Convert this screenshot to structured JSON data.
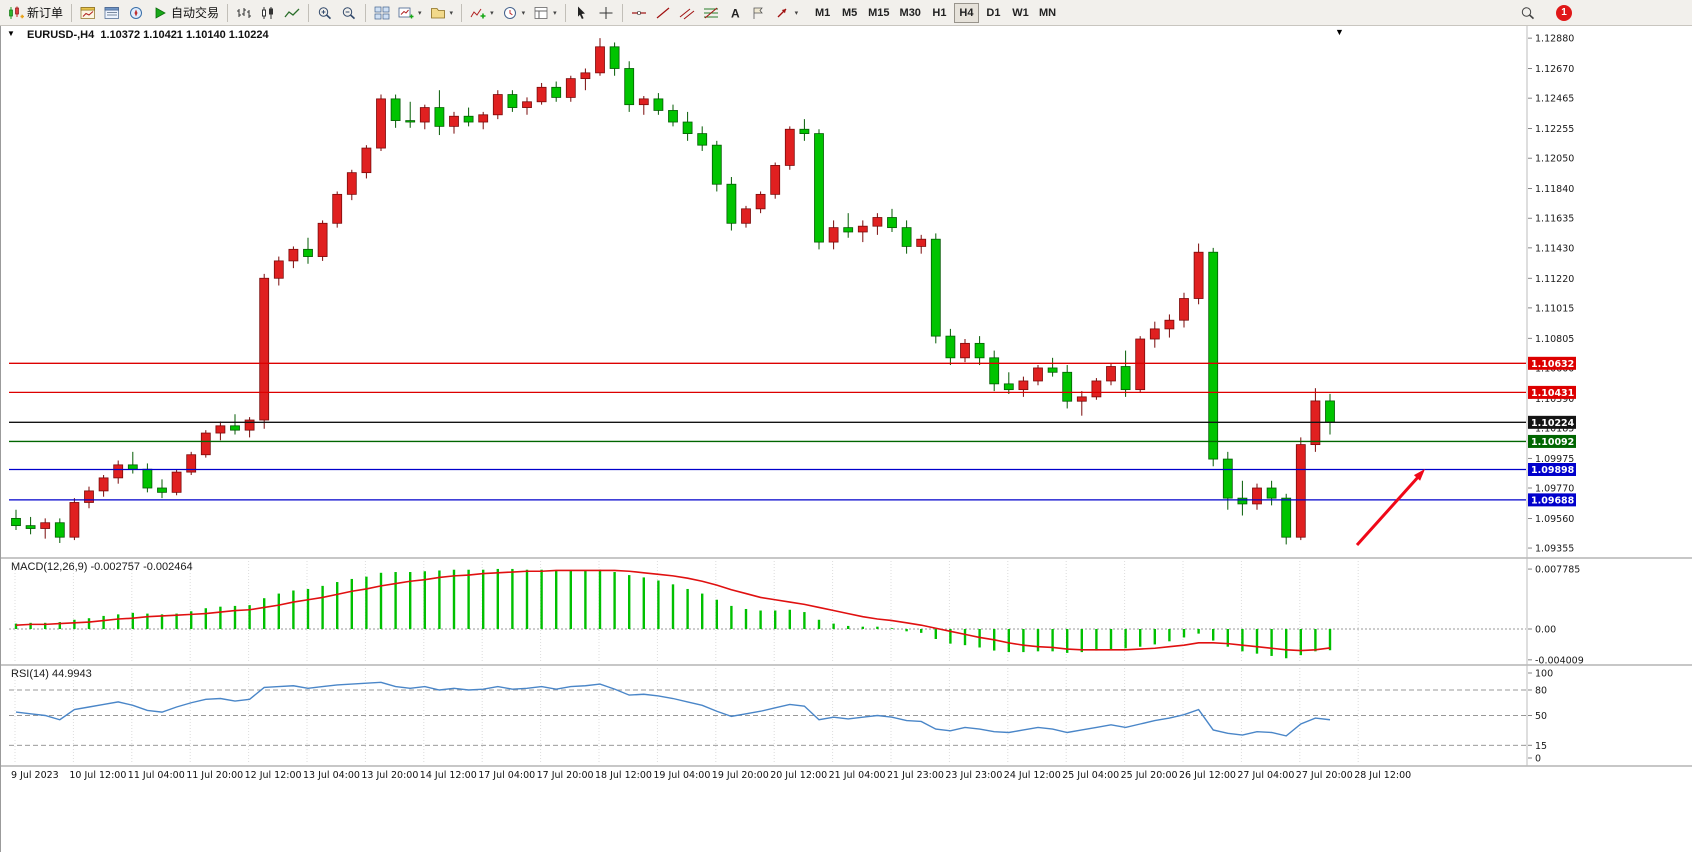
{
  "toolbar": {
    "new_order_label": "新订单",
    "autotrading_label": "自动交易",
    "text_tool_glyph": "A",
    "timeframes": [
      "M1",
      "M5",
      "M15",
      "M30",
      "H1",
      "H4",
      "D1",
      "W1",
      "MN"
    ],
    "active_timeframe": "H4",
    "notification_count": "1",
    "buttons": [
      "new-order",
      "market-watch",
      "data-window",
      "navigator",
      "autotrading",
      "bar-chart-type",
      "candlestick-type",
      "line-chart-type",
      "zoom-in",
      "zoom-out",
      "tile-windows",
      "new-chart",
      "profiles",
      "indicators",
      "periods",
      "templates",
      "cursor",
      "crosshair",
      "horizontal-line",
      "trendline",
      "equidistant-channel",
      "fibonacci",
      "text",
      "text-label",
      "arrows",
      "search",
      "notifications"
    ]
  },
  "chart": {
    "title_text": "EURUSD-,H4  1.10372 1.10421 1.10140 1.10224",
    "macd_text": "MACD(12,26,9) -0.002757 -0.002464",
    "rsi_text": "RSI(14) 44.9943"
  },
  "chart_data": [
    {
      "type": "candlestick",
      "symbol": "EURUSD-",
      "period": "H4",
      "ohlc_current": {
        "open": 1.10372,
        "high": 1.10421,
        "low": 1.1014,
        "close": 1.10224
      },
      "colors": {
        "bull": "#e02020",
        "bear": "#00c400"
      },
      "ylim": [
        1.09355,
        1.1288
      ],
      "y_ticks": [
        "1.12880",
        "1.12670",
        "1.12465",
        "1.12255",
        "1.12050",
        "1.11840",
        "1.11635",
        "1.11430",
        "1.11220",
        "1.11015",
        "1.10805",
        "1.10600",
        "1.10390",
        "1.10185",
        "1.09975",
        "1.09770",
        "1.09560",
        "1.09355"
      ],
      "x_labels": [
        "9 Jul 2023",
        "10 Jul 12:00",
        "11 Jul 04:00",
        "11 Jul 20:00",
        "12 Jul 12:00",
        "13 Jul 04:00",
        "13 Jul 20:00",
        "14 Jul 12:00",
        "17 Jul 04:00",
        "17 Jul 20:00",
        "18 Jul 12:00",
        "19 Jul 04:00",
        "19 Jul 20:00",
        "20 Jul 12:00",
        "21 Jul 04:00",
        "21 Jul 23:00",
        "23 Jul 23:00",
        "24 Jul 12:00",
        "25 Jul 04:00",
        "25 Jul 20:00",
        "26 Jul 12:00",
        "27 Jul 04:00",
        "27 Jul 20:00",
        "28 Jul 12:00"
      ],
      "hlines": [
        {
          "price": 1.10632,
          "label": "1.10632",
          "color": "#dd0000"
        },
        {
          "price": 1.10431,
          "label": "1.10431",
          "color": "#dd0000"
        },
        {
          "price": 1.10224,
          "label": "1.10224",
          "color": "#141414"
        },
        {
          "price": 1.10092,
          "label": "1.10092",
          "color": "#006600"
        },
        {
          "price": 1.09898,
          "label": "1.09898",
          "color": "#0000cc"
        },
        {
          "price": 1.09688,
          "label": "1.09688",
          "color": "#0000cc"
        }
      ],
      "arrow_annotation": {
        "shape": "arrow",
        "color": "#f00818",
        "direction": "up-right"
      },
      "candles": [
        [
          1.0956,
          1.0962,
          1.0948,
          1.0951
        ],
        [
          1.0951,
          1.0957,
          1.0945,
          1.0949
        ],
        [
          1.0949,
          1.0956,
          1.0942,
          1.0953
        ],
        [
          1.0953,
          1.0956,
          1.0939,
          1.0943
        ],
        [
          1.0943,
          1.097,
          1.0941,
          1.0967
        ],
        [
          1.0967,
          1.0978,
          1.0963,
          1.0975
        ],
        [
          1.0975,
          1.0986,
          1.0971,
          1.0984
        ],
        [
          1.0984,
          1.0996,
          1.098,
          1.0993
        ],
        [
          1.0993,
          1.1002,
          1.0987,
          1.099
        ],
        [
          1.099,
          1.0994,
          1.0974,
          1.0977
        ],
        [
          1.0977,
          1.0983,
          1.097,
          1.0974
        ],
        [
          1.0974,
          1.099,
          1.0972,
          1.0988
        ],
        [
          1.0988,
          1.1002,
          1.0986,
          1.1
        ],
        [
          1.1,
          1.1017,
          1.0998,
          1.1015
        ],
        [
          1.1015,
          1.1023,
          1.101,
          1.102
        ],
        [
          1.102,
          1.1028,
          1.1014,
          1.1017
        ],
        [
          1.1017,
          1.1026,
          1.1012,
          1.1024
        ],
        [
          1.1024,
          1.1125,
          1.1018,
          1.1122
        ],
        [
          1.1122,
          1.1137,
          1.1117,
          1.1134
        ],
        [
          1.1134,
          1.1144,
          1.1129,
          1.1142
        ],
        [
          1.1142,
          1.115,
          1.1132,
          1.1137
        ],
        [
          1.1137,
          1.1162,
          1.1134,
          1.116
        ],
        [
          1.116,
          1.1182,
          1.1157,
          1.118
        ],
        [
          1.118,
          1.1197,
          1.1176,
          1.1195
        ],
        [
          1.1195,
          1.1214,
          1.1191,
          1.1212
        ],
        [
          1.1212,
          1.1249,
          1.121,
          1.1246
        ],
        [
          1.1246,
          1.1249,
          1.1226,
          1.1231
        ],
        [
          1.1231,
          1.1244,
          1.1226,
          1.123
        ],
        [
          1.123,
          1.1242,
          1.1225,
          1.124
        ],
        [
          1.124,
          1.1252,
          1.1221,
          1.1227
        ],
        [
          1.1227,
          1.1237,
          1.1222,
          1.1234
        ],
        [
          1.1234,
          1.124,
          1.1227,
          1.123
        ],
        [
          1.123,
          1.1237,
          1.1225,
          1.1235
        ],
        [
          1.1235,
          1.1252,
          1.1232,
          1.1249
        ],
        [
          1.1249,
          1.1252,
          1.1237,
          1.124
        ],
        [
          1.124,
          1.1247,
          1.1235,
          1.1244
        ],
        [
          1.1244,
          1.1257,
          1.1242,
          1.1254
        ],
        [
          1.1254,
          1.1258,
          1.1244,
          1.1247
        ],
        [
          1.1247,
          1.1262,
          1.1244,
          1.126
        ],
        [
          1.126,
          1.1267,
          1.1252,
          1.1264
        ],
        [
          1.1264,
          1.1288,
          1.1262,
          1.1282
        ],
        [
          1.1282,
          1.1285,
          1.1262,
          1.1267
        ],
        [
          1.1267,
          1.1272,
          1.1237,
          1.1242
        ],
        [
          1.1242,
          1.1248,
          1.1235,
          1.1246
        ],
        [
          1.1246,
          1.125,
          1.1235,
          1.1238
        ],
        [
          1.1238,
          1.1242,
          1.1227,
          1.123
        ],
        [
          1.123,
          1.1237,
          1.1217,
          1.1222
        ],
        [
          1.1222,
          1.1227,
          1.121,
          1.1214
        ],
        [
          1.1214,
          1.1217,
          1.1182,
          1.1187
        ],
        [
          1.1187,
          1.1192,
          1.1155,
          1.116
        ],
        [
          1.116,
          1.1172,
          1.1157,
          1.117
        ],
        [
          1.117,
          1.1182,
          1.1167,
          1.118
        ],
        [
          1.118,
          1.1202,
          1.1177,
          1.12
        ],
        [
          1.12,
          1.1227,
          1.1197,
          1.1225
        ],
        [
          1.1225,
          1.1232,
          1.1217,
          1.1222
        ],
        [
          1.1222,
          1.1225,
          1.1142,
          1.1147
        ],
        [
          1.1147,
          1.1162,
          1.1142,
          1.1157
        ],
        [
          1.1157,
          1.1167,
          1.115,
          1.1154
        ],
        [
          1.1154,
          1.1162,
          1.1147,
          1.1158
        ],
        [
          1.1158,
          1.1167,
          1.1152,
          1.1164
        ],
        [
          1.1164,
          1.117,
          1.1154,
          1.1157
        ],
        [
          1.1157,
          1.1162,
          1.1139,
          1.1144
        ],
        [
          1.1144,
          1.1152,
          1.1139,
          1.1149
        ],
        [
          1.1149,
          1.1153,
          1.1077,
          1.1082
        ],
        [
          1.1082,
          1.1087,
          1.1062,
          1.1067
        ],
        [
          1.1067,
          1.108,
          1.1064,
          1.1077
        ],
        [
          1.1077,
          1.1082,
          1.1062,
          1.1067
        ],
        [
          1.1067,
          1.1072,
          1.1044,
          1.1049
        ],
        [
          1.1049,
          1.1057,
          1.1042,
          1.1045
        ],
        [
          1.1045,
          1.1054,
          1.104,
          1.1051
        ],
        [
          1.1051,
          1.1062,
          1.1048,
          1.106
        ],
        [
          1.106,
          1.1067,
          1.1054,
          1.1057
        ],
        [
          1.1057,
          1.1062,
          1.1032,
          1.1037
        ],
        [
          1.1037,
          1.1044,
          1.1027,
          1.104
        ],
        [
          1.104,
          1.1053,
          1.1038,
          1.1051
        ],
        [
          1.1051,
          1.1063,
          1.1048,
          1.1061
        ],
        [
          1.1061,
          1.1072,
          1.104,
          1.1045
        ],
        [
          1.1045,
          1.1082,
          1.1043,
          1.108
        ],
        [
          1.108,
          1.1092,
          1.1074,
          1.1087
        ],
        [
          1.1087,
          1.1097,
          1.1081,
          1.1093
        ],
        [
          1.1093,
          1.1112,
          1.1088,
          1.1108
        ],
        [
          1.1108,
          1.1146,
          1.1104,
          1.114
        ],
        [
          1.114,
          1.1143,
          1.0992,
          1.0997
        ],
        [
          1.0997,
          1.1002,
          1.0962,
          1.097
        ],
        [
          1.097,
          1.0982,
          1.0958,
          1.0966
        ],
        [
          1.0966,
          1.098,
          1.0962,
          1.0977
        ],
        [
          1.0977,
          1.0982,
          1.0965,
          1.097
        ],
        [
          1.097,
          1.0973,
          1.0938,
          1.0943
        ],
        [
          1.0943,
          1.1012,
          1.0941,
          1.1007
        ],
        [
          1.1007,
          1.1046,
          1.1002,
          1.10372
        ],
        [
          1.10372,
          1.10421,
          1.1014,
          1.10224
        ]
      ]
    },
    {
      "type": "bar",
      "name": "MACD(12,26,9)",
      "values_text": [
        "-0.002757",
        "-0.002464"
      ],
      "ylim": [
        -0.004009,
        0.007785
      ],
      "y_ticks": [
        "0.007785",
        "0.00",
        "-0.004009"
      ],
      "hist": [
        0.0007,
        0.0008,
        0.0008,
        0.0009,
        0.0012,
        0.0014,
        0.0017,
        0.0019,
        0.0021,
        0.002,
        0.0019,
        0.002,
        0.0023,
        0.0027,
        0.0029,
        0.003,
        0.0031,
        0.004,
        0.0046,
        0.005,
        0.0052,
        0.0056,
        0.0061,
        0.0065,
        0.0068,
        0.0073,
        0.0074,
        0.0074,
        0.0075,
        0.0076,
        0.0077,
        0.0077,
        0.0077,
        0.0078,
        0.0078,
        0.0077,
        0.0077,
        0.0076,
        0.0076,
        0.0076,
        0.0077,
        0.0074,
        0.007,
        0.0067,
        0.0063,
        0.0058,
        0.0052,
        0.0046,
        0.0038,
        0.003,
        0.0026,
        0.0024,
        0.0024,
        0.0025,
        0.0022,
        0.0012,
        0.0007,
        0.0004,
        0.0003,
        0.0003,
        0.0001,
        -0.0003,
        -0.0005,
        -0.0013,
        -0.0019,
        -0.0021,
        -0.0024,
        -0.0028,
        -0.003,
        -0.003,
        -0.0029,
        -0.0029,
        -0.0031,
        -0.003,
        -0.0028,
        -0.0026,
        -0.0025,
        -0.0023,
        -0.002,
        -0.0016,
        -0.0011,
        -0.0006,
        -0.0015,
        -0.0023,
        -0.0029,
        -0.0032,
        -0.0035,
        -0.0038,
        -0.0034,
        -0.0029,
        -0.002757
      ],
      "signal": [
        0.0005,
        0.0006,
        0.0006,
        0.0007,
        0.0008,
        0.0009,
        0.0011,
        0.0013,
        0.0014,
        0.0016,
        0.0017,
        0.0018,
        0.0019,
        0.002,
        0.0022,
        0.0024,
        0.0025,
        0.0028,
        0.0031,
        0.0035,
        0.0038,
        0.0041,
        0.0045,
        0.0049,
        0.0052,
        0.0056,
        0.0059,
        0.0062,
        0.0064,
        0.0067,
        0.0069,
        0.007,
        0.0072,
        0.0073,
        0.0074,
        0.0075,
        0.0075,
        0.0076,
        0.0076,
        0.0076,
        0.0076,
        0.0076,
        0.0075,
        0.0073,
        0.0071,
        0.0069,
        0.0066,
        0.0062,
        0.0057,
        0.0051,
        0.0046,
        0.0041,
        0.0038,
        0.0035,
        0.0032,
        0.0028,
        0.0024,
        0.002,
        0.0016,
        0.0013,
        0.0011,
        0.0008,
        0.0005,
        0.0001,
        -0.0003,
        -0.0007,
        -0.0011,
        -0.0014,
        -0.0018,
        -0.0021,
        -0.0023,
        -0.0024,
        -0.0026,
        -0.0027,
        -0.0027,
        -0.0027,
        -0.0027,
        -0.0026,
        -0.0025,
        -0.0023,
        -0.0021,
        -0.0018,
        -0.0018,
        -0.0019,
        -0.0021,
        -0.0023,
        -0.0025,
        -0.0027,
        -0.0028,
        -0.0027,
        -0.002464
      ]
    },
    {
      "type": "line",
      "name": "RSI(14)",
      "current": 44.9943,
      "ylim": [
        0,
        100
      ],
      "y_ticks": [
        "100",
        "80",
        "50",
        "15",
        "0"
      ],
      "levels": [
        80,
        50,
        15
      ],
      "values": [
        54,
        52,
        50,
        45,
        57,
        60,
        63,
        66,
        62,
        56,
        54,
        60,
        65,
        69,
        70,
        67,
        69,
        83,
        84,
        85,
        82,
        84,
        86,
        87,
        88,
        89,
        84,
        82,
        84,
        80,
        82,
        80,
        81,
        84,
        81,
        82,
        84,
        81,
        84,
        85,
        87,
        81,
        74,
        75,
        73,
        70,
        66,
        62,
        55,
        49,
        52,
        55,
        59,
        63,
        61,
        45,
        48,
        46,
        48,
        50,
        48,
        44,
        43,
        34,
        32,
        36,
        34,
        31,
        30,
        33,
        36,
        34,
        30,
        33,
        36,
        39,
        36,
        40,
        44,
        47,
        51,
        57,
        33,
        29,
        27,
        31,
        30,
        26,
        40,
        47,
        44.9943
      ]
    }
  ]
}
